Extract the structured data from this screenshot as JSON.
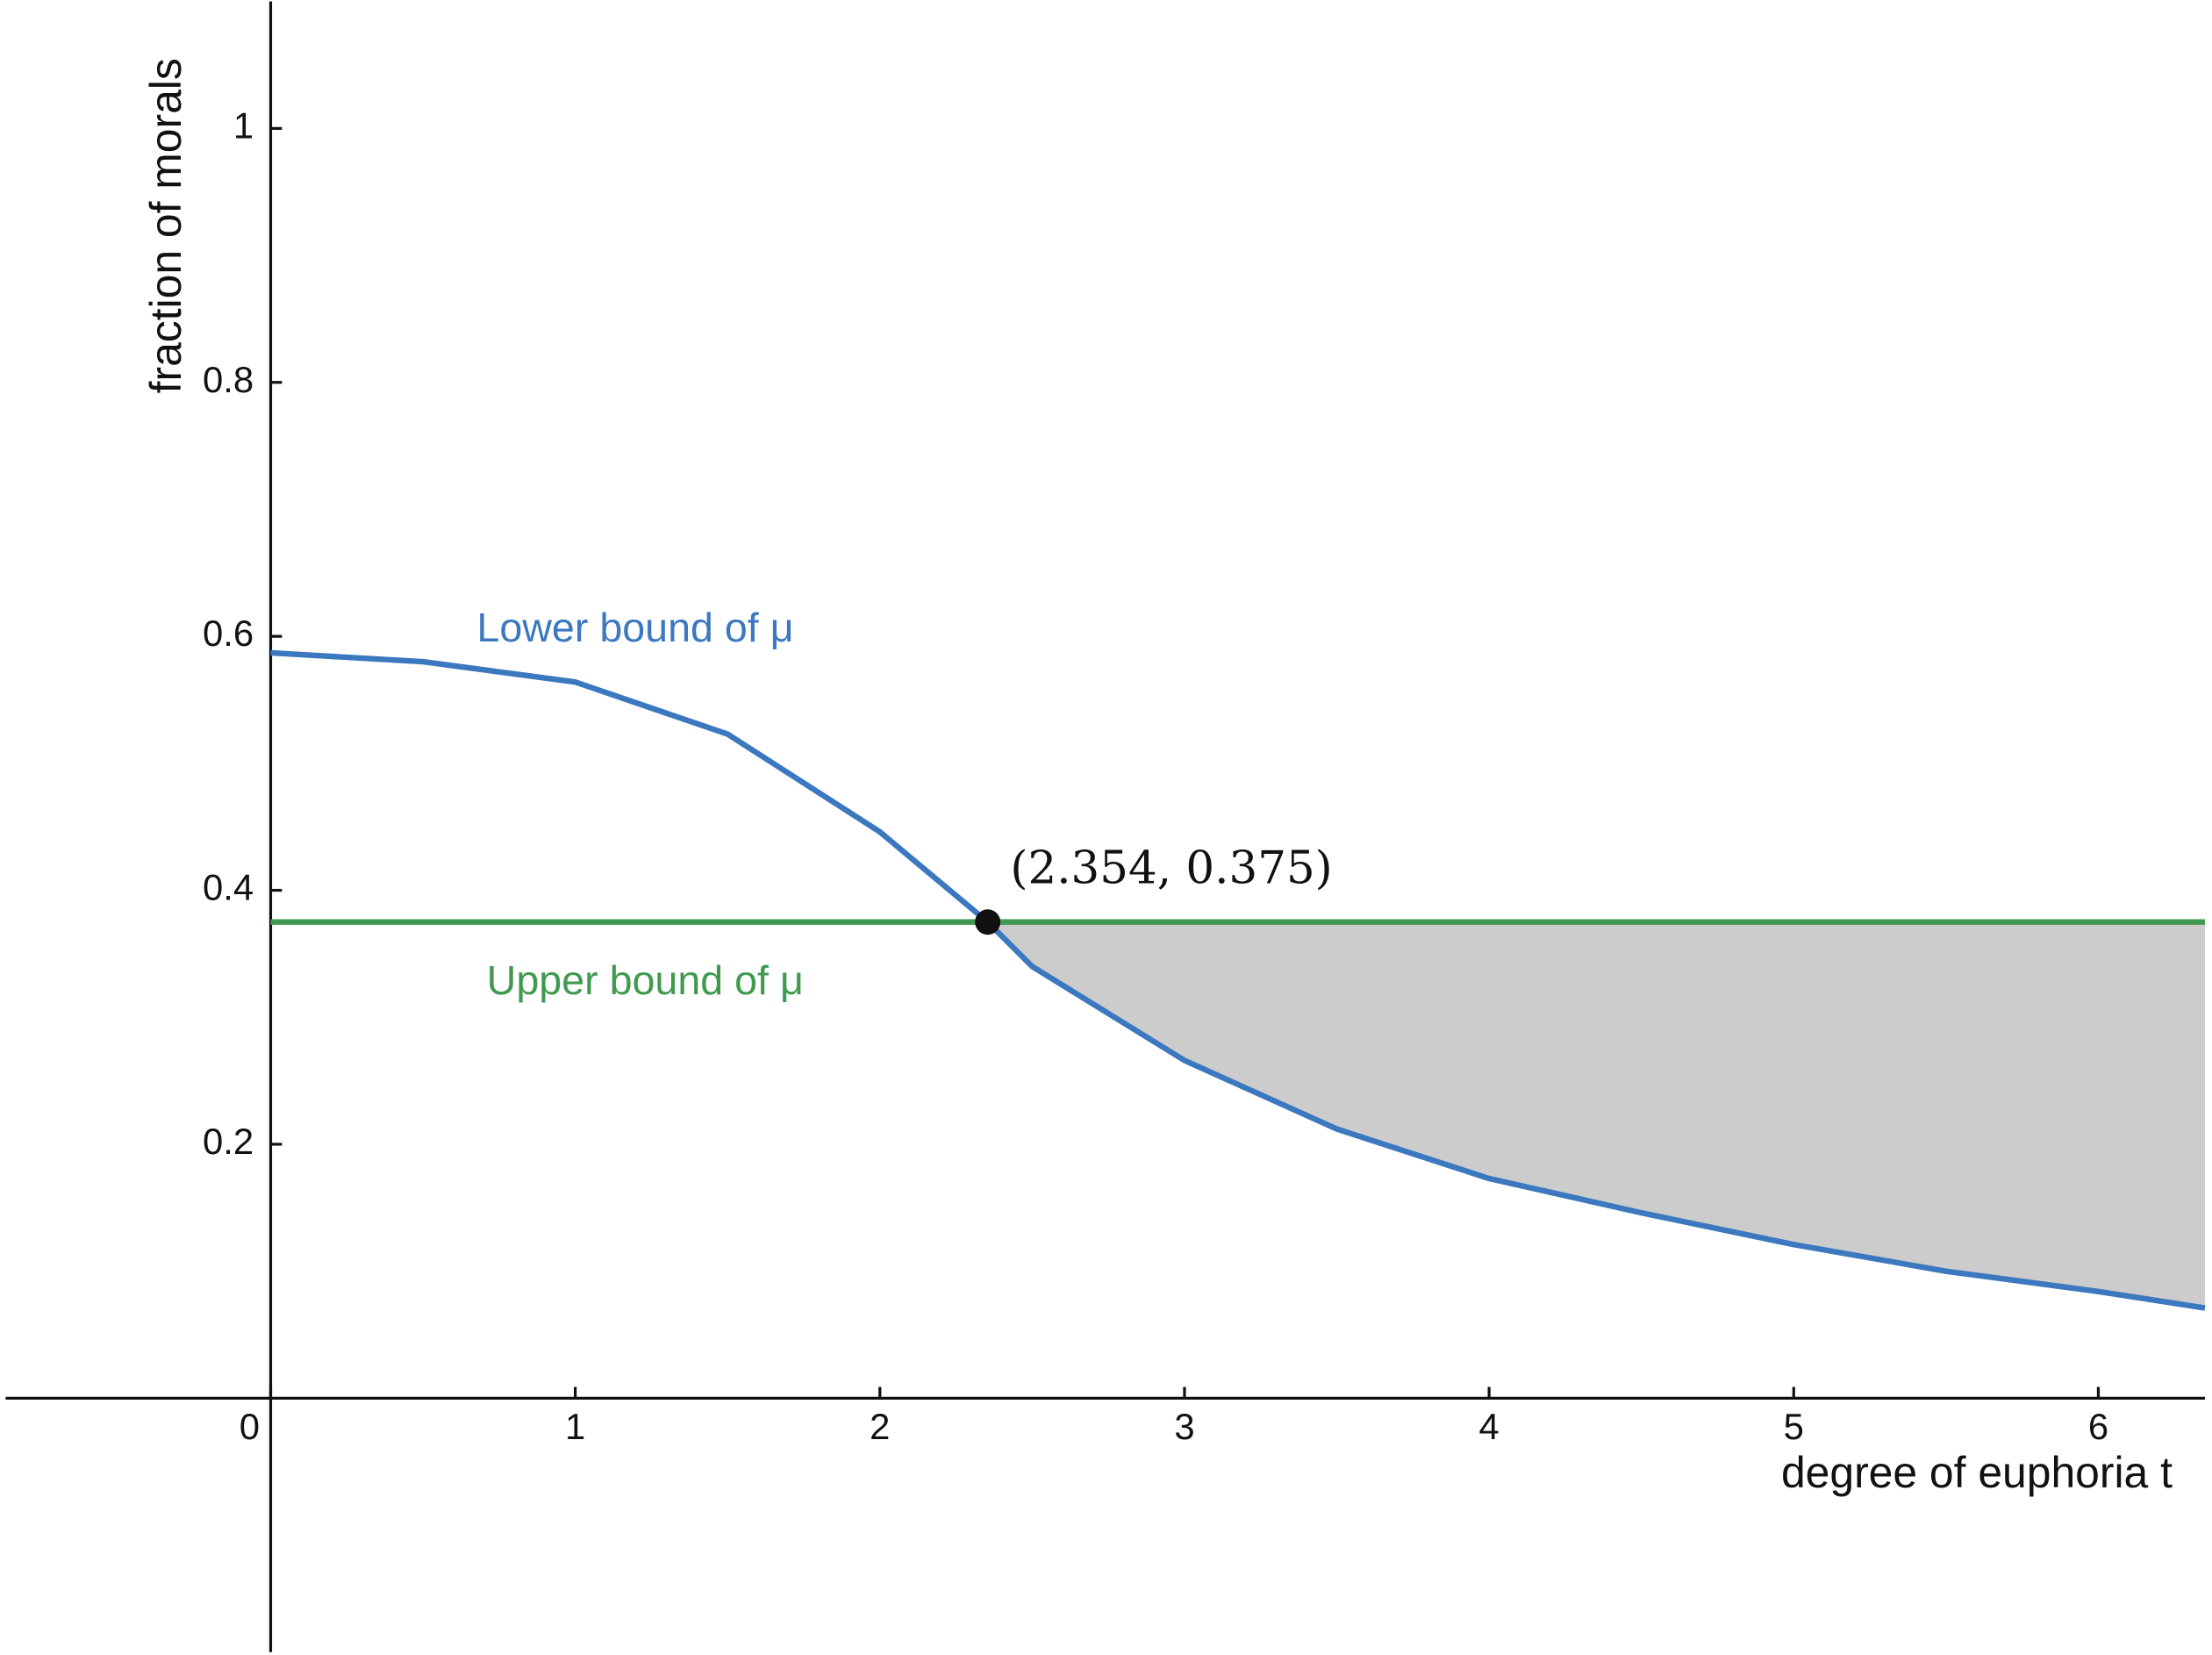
{
  "chart_data": {
    "type": "line",
    "xlabel": "degree of euphoria t",
    "ylabel": "fraction of morals",
    "xlim": [
      -0.87,
      6.35
    ],
    "ylim": [
      -0.2,
      1.1
    ],
    "xticks": [
      0,
      1,
      2,
      3,
      4,
      5,
      6
    ],
    "yticks": [
      0.2,
      0.4,
      0.6,
      0.8,
      1
    ],
    "grid": false,
    "series": [
      {
        "name": "Lower bound of μ",
        "color": "#3b78bf",
        "x": [
          0,
          0.5,
          1,
          1.5,
          2,
          2.354,
          2.5,
          3,
          3.5,
          4,
          4.5,
          5,
          5.5,
          6,
          6.35
        ],
        "values": [
          0.587,
          0.58,
          0.564,
          0.523,
          0.446,
          0.375,
          0.34,
          0.266,
          0.212,
          0.173,
          0.146,
          0.121,
          0.1,
          0.084,
          0.071
        ]
      },
      {
        "name": "Upper bound of μ",
        "color": "#3f9a4f",
        "x": [
          0,
          6.35
        ],
        "values": [
          0.375,
          0.375
        ]
      }
    ],
    "shade_color": "#cccccc",
    "annotation": {
      "text": "(2.354, 0.375)",
      "x": 2.354,
      "y": 0.375
    }
  }
}
